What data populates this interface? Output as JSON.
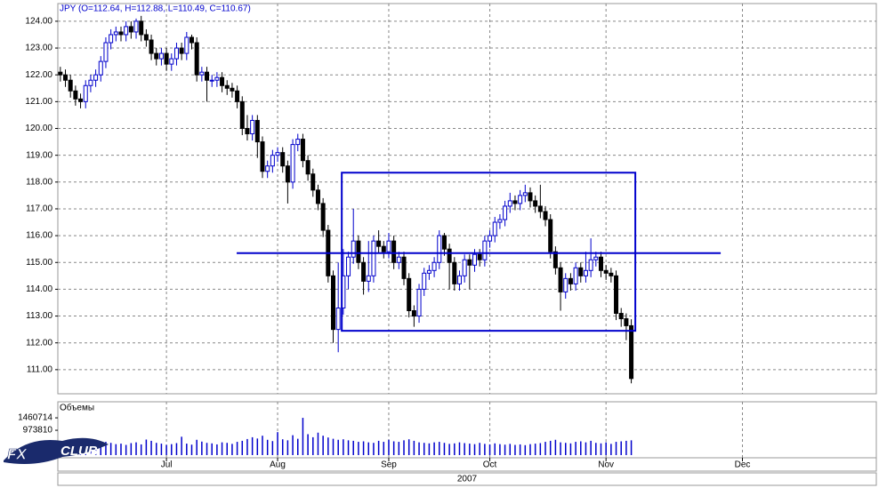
{
  "chart_data": {
    "type": "candlestick",
    "title": "JPY (O=112.64, H=112.88, L=110.49, C=110.67)",
    "open": [
      122.1,
      122.0,
      121.8,
      121.4,
      121.1,
      121.0,
      121.6,
      121.8,
      122.0,
      122.5,
      123.2,
      123.5,
      123.6,
      123.5,
      123.8,
      123.6,
      124.0,
      123.5,
      123.3,
      122.8,
      122.6,
      122.8,
      122.4,
      122.6,
      123.0,
      122.8,
      123.4,
      123.2,
      122.0,
      122.1,
      121.8,
      121.8,
      121.9,
      121.6,
      121.5,
      121.4,
      121.0,
      120.0,
      119.8,
      120.3,
      119.5,
      118.4,
      118.6,
      119.0,
      119.1,
      118.6,
      118.0,
      119.4,
      119.6,
      118.8,
      118.3,
      117.7,
      117.2,
      116.2,
      114.5,
      112.5,
      113.3,
      114.5,
      115.2,
      115.8,
      115.0,
      114.3,
      114.5,
      115.8,
      115.6,
      115.4,
      115.8,
      115.0,
      115.2,
      114.4,
      113.2,
      113.0,
      114.0,
      114.6,
      114.7,
      115.0,
      116.0,
      115.5,
      115.0,
      114.2,
      114.5,
      115.1,
      114.9,
      115.3,
      115.1,
      115.8,
      116.0,
      116.5,
      116.6,
      117.1,
      117.3,
      117.2,
      117.5,
      117.6,
      117.3,
      117.1,
      116.9,
      116.6,
      115.4,
      114.8,
      113.9,
      114.4,
      114.2,
      114.8,
      114.5,
      114.7,
      115.1,
      115.2,
      114.7,
      114.6,
      114.5,
      113.1,
      112.9,
      112.64
    ],
    "high": [
      122.3,
      122.2,
      122.0,
      121.6,
      121.3,
      121.8,
      122.0,
      122.2,
      122.7,
      123.4,
      123.7,
      123.8,
      123.8,
      124.0,
      124.0,
      124.1,
      124.2,
      123.7,
      123.5,
      123.0,
      123.0,
      123.0,
      122.8,
      123.2,
      123.2,
      123.6,
      123.5,
      123.4,
      122.3,
      122.3,
      122.0,
      122.1,
      122.1,
      121.8,
      121.7,
      121.6,
      121.2,
      120.5,
      120.5,
      120.5,
      119.7,
      118.8,
      119.2,
      119.3,
      119.3,
      118.8,
      119.6,
      119.8,
      119.8,
      119.0,
      118.5,
      117.9,
      117.4,
      116.4,
      114.7,
      115.0,
      115.5,
      115.4,
      117.0,
      116.0,
      115.2,
      115.8,
      116.0,
      116.2,
      115.8,
      116.1,
      116.0,
      115.4,
      115.4,
      114.6,
      113.4,
      114.2,
      114.8,
      114.9,
      115.2,
      116.2,
      116.1,
      115.7,
      115.2,
      114.7,
      115.3,
      115.3,
      115.5,
      115.5,
      116.0,
      116.2,
      116.7,
      116.8,
      117.3,
      117.6,
      117.5,
      117.7,
      117.9,
      117.8,
      117.5,
      117.9,
      117.1,
      116.8,
      115.6,
      115.0,
      114.6,
      114.6,
      115.0,
      115.0,
      115.4,
      115.9,
      115.4,
      115.4,
      114.9,
      114.8,
      114.7,
      113.3,
      113.1,
      112.88
    ],
    "low": [
      121.75,
      121.55,
      121.15,
      120.85,
      120.75,
      120.75,
      121.35,
      121.55,
      121.75,
      122.25,
      122.95,
      123.25,
      123.25,
      123.25,
      123.35,
      123.35,
      123.25,
      123.05,
      122.55,
      122.35,
      122.35,
      122.15,
      122.15,
      122.35,
      122.55,
      122.55,
      122.95,
      121.75,
      121.75,
      121.0,
      121.55,
      121.55,
      121.35,
      121.25,
      121.15,
      120.75,
      119.75,
      119.55,
      119.55,
      118.9,
      118.15,
      118.15,
      118.35,
      118.75,
      118.35,
      117.2,
      117.75,
      119.15,
      118.55,
      118.05,
      117.45,
      116.95,
      115.95,
      114.25,
      112.0,
      111.65,
      113.05,
      114.0,
      114.95,
      114.75,
      113.8,
      113.9,
      114.25,
      115.35,
      115.15,
      115.15,
      114.75,
      114.75,
      114.15,
      112.95,
      112.6,
      112.75,
      113.75,
      114.35,
      114.45,
      114.75,
      115.25,
      114.0,
      113.95,
      113.95,
      114.25,
      114.0,
      114.65,
      114.85,
      114.85,
      115.55,
      115.75,
      116.25,
      116.35,
      116.85,
      116.95,
      116.95,
      117.25,
      117.05,
      116.85,
      116.65,
      116.35,
      115.15,
      114.55,
      113.2,
      113.65,
      113.95,
      113.95,
      114.25,
      114.25,
      114.45,
      114.85,
      114.45,
      114.35,
      114.25,
      112.85,
      112.6,
      112.1,
      110.49
    ],
    "close": [
      122.0,
      121.8,
      121.4,
      121.1,
      121.0,
      121.6,
      121.8,
      122.0,
      122.5,
      123.2,
      123.5,
      123.6,
      123.5,
      123.8,
      123.6,
      124.0,
      123.5,
      123.3,
      122.8,
      122.6,
      122.8,
      122.4,
      122.6,
      123.0,
      122.8,
      123.4,
      123.2,
      122.0,
      122.1,
      121.8,
      121.8,
      121.9,
      121.6,
      121.5,
      121.4,
      121.0,
      120.0,
      119.8,
      120.3,
      119.5,
      118.4,
      118.6,
      119.0,
      119.1,
      118.6,
      118.0,
      119.4,
      119.6,
      118.8,
      118.3,
      117.7,
      117.2,
      116.2,
      114.5,
      112.5,
      113.3,
      114.5,
      115.2,
      115.8,
      115.0,
      114.3,
      114.5,
      115.8,
      115.6,
      115.4,
      115.8,
      115.0,
      115.2,
      114.4,
      113.2,
      113.0,
      114.0,
      114.6,
      114.7,
      115.0,
      116.0,
      115.5,
      115.0,
      114.2,
      114.5,
      115.1,
      114.9,
      115.3,
      115.1,
      115.8,
      116.0,
      116.5,
      116.6,
      117.1,
      117.3,
      117.2,
      117.5,
      117.6,
      117.3,
      117.1,
      116.9,
      116.6,
      115.4,
      114.8,
      113.9,
      114.4,
      114.2,
      114.8,
      114.5,
      114.7,
      115.1,
      115.2,
      114.7,
      114.6,
      114.5,
      113.1,
      112.9,
      112.64,
      110.67
    ],
    "up_color": "#0000cc",
    "down_color": "#000000",
    "ylim": [
      110.1,
      124.66
    ],
    "yticks": [
      {
        "value": 111,
        "label": "111.00"
      },
      {
        "value": 112,
        "label": "112.00"
      },
      {
        "value": 113,
        "label": "113.00"
      },
      {
        "value": 114,
        "label": "114.00"
      },
      {
        "value": 115,
        "label": "115.00"
      },
      {
        "value": 116,
        "label": "116.00"
      },
      {
        "value": 117,
        "label": "117.00"
      },
      {
        "value": 118,
        "label": "118.00"
      },
      {
        "value": 119,
        "label": "119.00"
      },
      {
        "value": 120,
        "label": "120.00"
      },
      {
        "value": 121,
        "label": "121.00"
      },
      {
        "value": 122,
        "label": "122.00"
      },
      {
        "value": 123,
        "label": "123.00"
      },
      {
        "value": 124,
        "label": "124.00"
      }
    ],
    "xlim": [
      -0.5,
      161.5
    ],
    "xticks": [
      {
        "value": 21,
        "label": "Jul"
      },
      {
        "value": 43,
        "label": "Aug"
      },
      {
        "value": 65,
        "label": "Sep"
      },
      {
        "value": 85,
        "label": "Oct"
      },
      {
        "value": 108,
        "label": "Nov"
      },
      {
        "value": 135,
        "label": "Dec"
      }
    ],
    "year_label": "2007",
    "grid": true,
    "annotations": [
      {
        "shape": "rect",
        "color": "#0000cc",
        "x": [
          55.7,
          113.8
        ],
        "y": [
          112.45,
          118.35
        ]
      },
      {
        "shape": "line",
        "color": "#0000cc",
        "x": [
          34.9,
          130.7
        ],
        "y": [
          115.35,
          115.35
        ]
      }
    ],
    "volume": {
      "label": "Объемы",
      "color": "#0000cc",
      "values": [
        420000,
        380000,
        450000,
        400000,
        430000,
        390000,
        460000,
        410000,
        440000,
        520000,
        480000,
        430000,
        450000,
        400000,
        470000,
        500000,
        420000,
        610000,
        560000,
        480000,
        450000,
        400000,
        430000,
        470000,
        720000,
        450000,
        410000,
        600000,
        530000,
        480000,
        460000,
        420000,
        500000,
        480000,
        440000,
        520000,
        560000,
        630000,
        700000,
        650000,
        760000,
        600000,
        550000,
        900000,
        620000,
        580000,
        780000,
        640000,
        1460714,
        820000,
        700000,
        880000,
        760000,
        690000,
        640000,
        600000,
        620000,
        580000,
        560000,
        520000,
        540000,
        500000,
        480000,
        560000,
        520000,
        600000,
        540000,
        520000,
        580000,
        620000,
        560000,
        500000,
        480000,
        460000,
        500000,
        520000,
        480000,
        440000,
        460000,
        500000,
        470000,
        450000,
        430000,
        480000,
        440000,
        420000,
        460000,
        430000,
        410000,
        440000,
        400000,
        420000,
        390000,
        430000,
        450000,
        470000,
        520000,
        560000,
        600000,
        500000,
        480000,
        460000,
        520000,
        540000,
        500000,
        560000,
        480000,
        460000,
        500000,
        440000,
        520000,
        540000,
        560000,
        580000
      ],
      "ylim": [
        0,
        2090000
      ],
      "yticks": [
        973810,
        1460714
      ]
    },
    "logo": {
      "left": "FX",
      "right": "CLUB"
    }
  }
}
